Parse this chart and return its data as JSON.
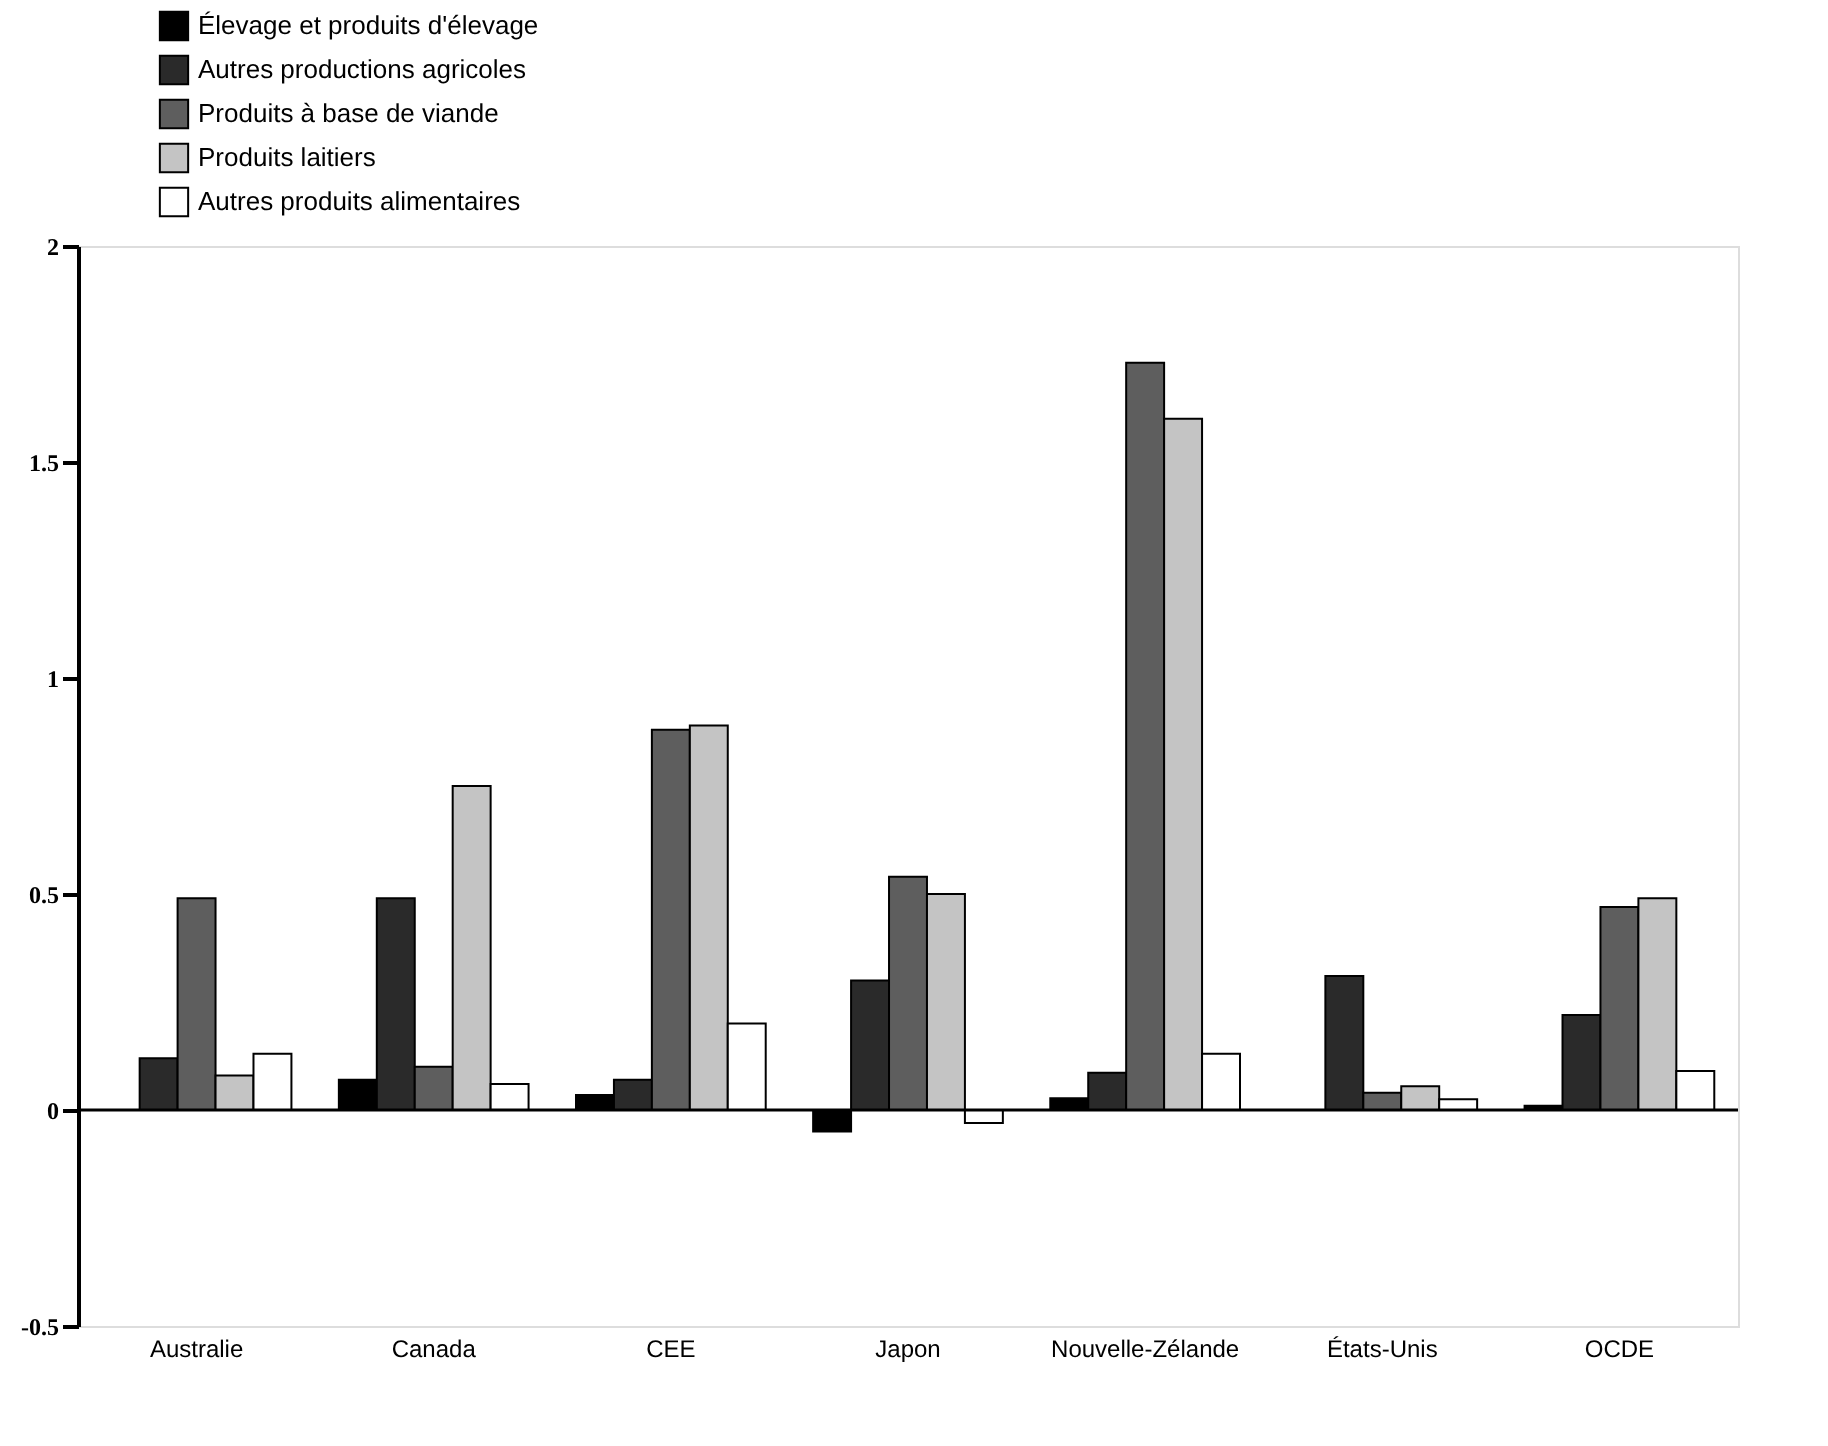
{
  "chart_data": {
    "type": "bar",
    "categories": [
      "Australie",
      "Canada",
      "CEE",
      "Japon",
      "Nouvelle-Zélande",
      "États-Unis",
      "OCDE"
    ],
    "series": [
      {
        "name": "Élevage et produits d'élevage",
        "color": "#000000",
        "values": [
          0,
          0.07,
          0.035,
          -0.05,
          0.027,
          0,
          0.01
        ]
      },
      {
        "name": "Autres productions agricoles",
        "color": "#2a2a2a",
        "values": [
          0.12,
          0.49,
          0.07,
          0.3,
          0.086,
          0.31,
          0.22
        ]
      },
      {
        "name": "Produits à base de viande",
        "color": "#5e5e5e",
        "values": [
          0.49,
          0.1,
          0.88,
          0.54,
          1.73,
          0.04,
          0.47
        ]
      },
      {
        "name": "Produits laitiers",
        "color": "#c4c4c4",
        "values": [
          0.08,
          0.75,
          0.89,
          0.5,
          1.6,
          0.055,
          0.49
        ]
      },
      {
        "name": "Autres produits alimentaires",
        "color": "#ffffff",
        "values": [
          0.13,
          0.06,
          0.2,
          -0.03,
          0.13,
          0.025,
          0.09
        ]
      }
    ],
    "ylim": [
      -0.5,
      2
    ],
    "yticks": [
      -0.5,
      0,
      0.5,
      1,
      1.5,
      2
    ],
    "ref_lines": [
      {
        "axis": "y",
        "value": 0,
        "color": "#000000"
      }
    ],
    "grid": false,
    "legend": "top left"
  }
}
